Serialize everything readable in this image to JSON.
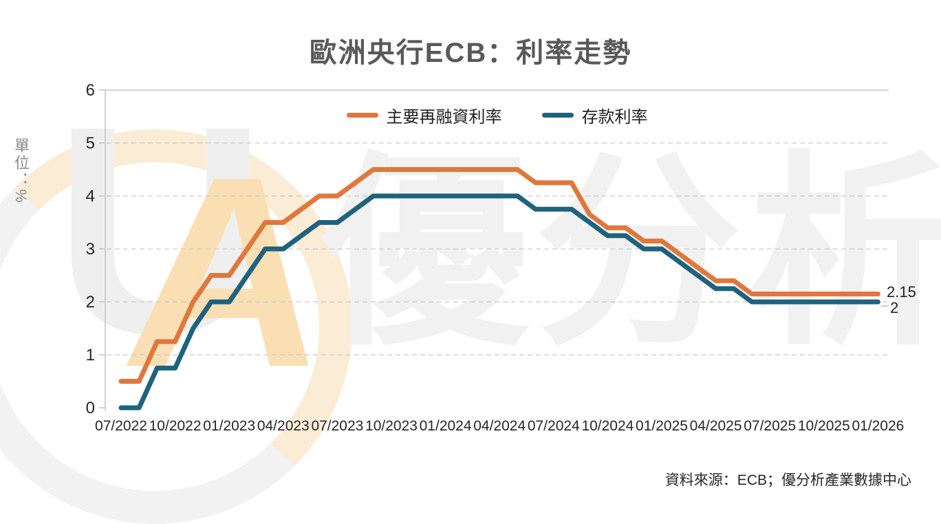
{
  "title": "歐洲央行ECB：利率走勢",
  "y_axis_title": "單位：%",
  "source_note": "資料來源：ECB；優分析產業數據中心",
  "watermark": {
    "logo_letter_u": "U",
    "logo_letter_a": "A",
    "brand_text": "優分析"
  },
  "colors": {
    "main_refi_line": "#E0773C",
    "deposit_line": "#1F627D",
    "axis_gray": "#c6c6c6",
    "gridline_gray": "#c9c9c9",
    "title_gray": "#595959",
    "tick_text": "#262626"
  },
  "chart_data": {
    "type": "line",
    "title": "歐洲央行ECB：利率走勢",
    "xlabel": "",
    "ylabel": "單位：%",
    "ylim": [
      0,
      6
    ],
    "yticks": [
      0,
      1,
      2,
      3,
      4,
      5,
      6
    ],
    "grid": "horizontal dashed, solid top border and left axis",
    "legend_position": "top center",
    "x_tick_labels": [
      "07/2022",
      "10/2022",
      "01/2023",
      "04/2023",
      "07/2023",
      "10/2023",
      "01/2024",
      "04/2024",
      "07/2024",
      "10/2024",
      "01/2025",
      "04/2025",
      "07/2025",
      "10/2025",
      "01/2026"
    ],
    "months": [
      "07/2022",
      "08/2022",
      "09/2022",
      "10/2022",
      "11/2022",
      "12/2022",
      "01/2023",
      "02/2023",
      "03/2023",
      "04/2023",
      "05/2023",
      "06/2023",
      "07/2023",
      "08/2023",
      "09/2023",
      "10/2023",
      "11/2023",
      "12/2023",
      "01/2024",
      "02/2024",
      "03/2024",
      "04/2024",
      "05/2024",
      "06/2024",
      "07/2024",
      "08/2024",
      "09/2024",
      "10/2024",
      "11/2024",
      "12/2024",
      "01/2025",
      "02/2025",
      "03/2025",
      "04/2025",
      "05/2025",
      "06/2025",
      "07/2025",
      "08/2025",
      "09/2025",
      "10/2025",
      "11/2025",
      "12/2025",
      "01/2026"
    ],
    "series": [
      {
        "name": "主要再融資利率",
        "color": "#E0773C",
        "end_label": "2.15",
        "values": [
          0.5,
          0.5,
          1.25,
          1.25,
          2.0,
          2.5,
          2.5,
          3.0,
          3.5,
          3.5,
          3.75,
          4.0,
          4.0,
          4.25,
          4.5,
          4.5,
          4.5,
          4.5,
          4.5,
          4.5,
          4.5,
          4.5,
          4.5,
          4.25,
          4.25,
          4.25,
          3.65,
          3.4,
          3.4,
          3.15,
          3.15,
          2.9,
          2.65,
          2.4,
          2.4,
          2.15,
          2.15,
          2.15,
          2.15,
          2.15,
          2.15,
          2.15,
          2.15
        ]
      },
      {
        "name": "存款利率",
        "color": "#1F627D",
        "end_label": "2",
        "values": [
          0.0,
          0.0,
          0.75,
          0.75,
          1.5,
          2.0,
          2.0,
          2.5,
          3.0,
          3.0,
          3.25,
          3.5,
          3.5,
          3.75,
          4.0,
          4.0,
          4.0,
          4.0,
          4.0,
          4.0,
          4.0,
          4.0,
          4.0,
          3.75,
          3.75,
          3.75,
          3.5,
          3.25,
          3.25,
          3.0,
          3.0,
          2.75,
          2.5,
          2.25,
          2.25,
          2.0,
          2.0,
          2.0,
          2.0,
          2.0,
          2.0,
          2.0,
          2.0
        ]
      }
    ]
  }
}
